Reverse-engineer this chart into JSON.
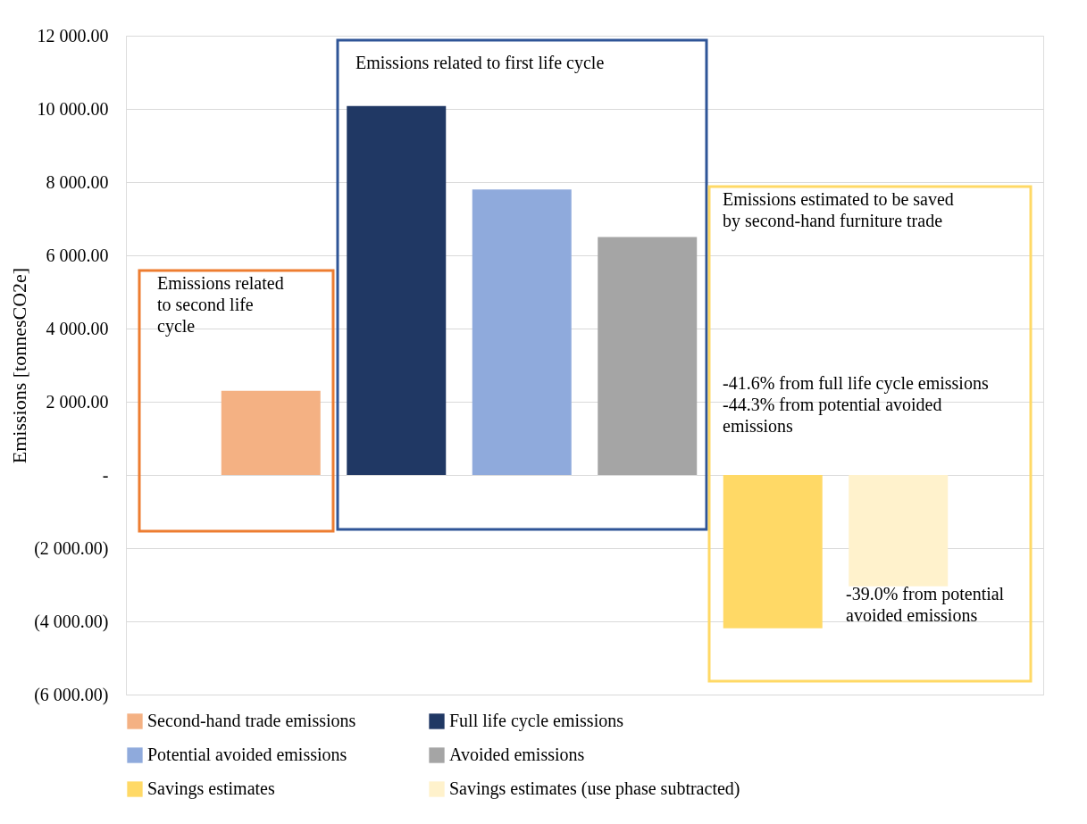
{
  "chart_data": {
    "type": "bar",
    "ylabel": "Emissions [tonnesCO2e]",
    "categories": [
      null,
      null,
      null,
      null,
      null,
      null
    ],
    "series": [
      {
        "name": "Second-hand trade emissions",
        "color": "#f4b183",
        "values": [
          2300,
          null,
          null,
          null,
          null,
          null
        ]
      },
      {
        "name": "Full life cycle emissions",
        "color": "#203864",
        "values": [
          null,
          10080,
          null,
          null,
          null,
          null
        ]
      },
      {
        "name": "Potential avoided emissions",
        "color": "#8faadc",
        "values": [
          null,
          null,
          7800,
          null,
          null,
          null
        ]
      },
      {
        "name": "Avoided emissions",
        "color": "#a5a5a5",
        "values": [
          null,
          null,
          null,
          6500,
          null,
          null
        ]
      },
      {
        "name": "Savings estimates",
        "color": "#ffd966",
        "values": [
          null,
          null,
          null,
          null,
          -4190,
          null
        ]
      },
      {
        "name": "Savings estimates (use phase subtracted)",
        "color": "#fff2cc",
        "values": [
          null,
          null,
          null,
          null,
          null,
          -3040
        ]
      }
    ],
    "ylim": [
      -6000,
      12000
    ],
    "yticks": [
      {
        "value": -6000,
        "label": "(6 000.00)"
      },
      {
        "value": -4000,
        "label": "(4 000.00)"
      },
      {
        "value": -2000,
        "label": "(2 000.00)"
      },
      {
        "value": 0,
        "label": "-"
      },
      {
        "value": 2000,
        "label": "2 000.00"
      },
      {
        "value": 4000,
        "label": "4 000.00"
      },
      {
        "value": 6000,
        "label": "6 000.00"
      },
      {
        "value": 8000,
        "label": "8 000.00"
      },
      {
        "value": 10000,
        "label": "10 000.00"
      },
      {
        "value": 12000,
        "label": "12 000.00"
      }
    ],
    "grid": "y",
    "legend": "bottom",
    "tick_labels": "y",
    "annotations": [
      "Emissions related to first life cycle",
      "Emissions related\nto second life\ncycle",
      "Emissions estimated to be saved\nby second-hand furniture trade",
      "-41.6% from full life cycle emissions\n-44.3% from potential avoided\nemissions",
      "-39.0% from potential\navoided emissions"
    ]
  }
}
